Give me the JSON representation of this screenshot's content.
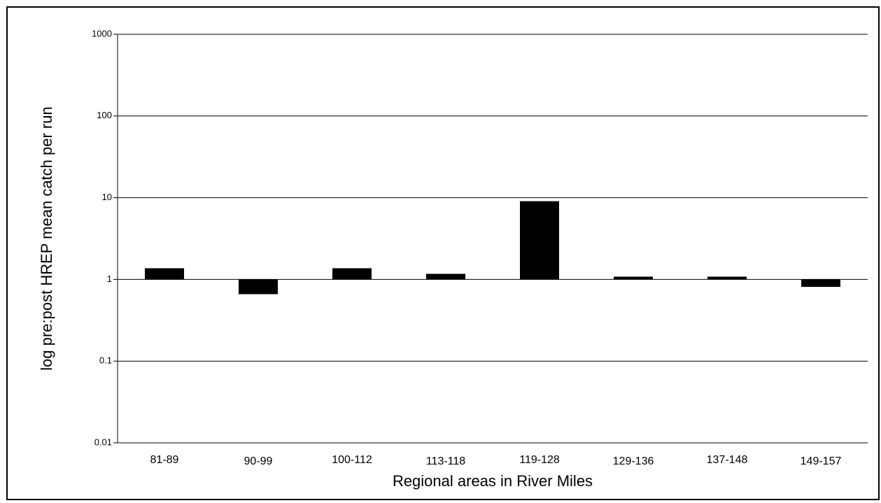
{
  "chart_data": {
    "type": "bar",
    "log_scale": true,
    "grid": true,
    "color": "#000000",
    "x_label": "Regional areas in River Miles",
    "y_label": "log pre:post HREP mean catch per run",
    "categories": [
      "81-89",
      "90-99",
      "100-112",
      "113-118",
      "119-128",
      "129-136",
      "137-148",
      "149-157"
    ],
    "values": [
      1.37,
      0.66,
      1.37,
      1.17,
      9.06,
      1.08,
      1.08,
      0.81
    ],
    "ylim": [
      0.01,
      1000
    ],
    "yticks": [
      0.01,
      0.1,
      1,
      10,
      100,
      1000
    ]
  }
}
